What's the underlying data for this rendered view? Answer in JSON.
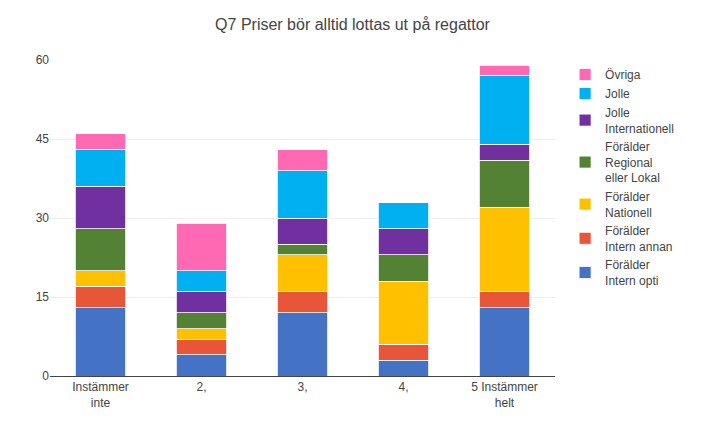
{
  "chart_data": {
    "type": "bar",
    "stacked": true,
    "title": "Q7 Priser bör alltid lottas ut på regattor",
    "categories": [
      "Instämmer\ninte",
      "2,",
      "3,",
      "4,",
      "5 Instämmer\nhelt"
    ],
    "series": [
      {
        "name": "Förälder\nIntern opti",
        "color": "#4472C4",
        "values": [
          13,
          4,
          12,
          3,
          13
        ]
      },
      {
        "name": "Förälder\nIntern annan",
        "color": "#E8563A",
        "values": [
          4,
          3,
          4,
          3,
          3
        ]
      },
      {
        "name": "Förälder\nNationell",
        "color": "#FFC000",
        "values": [
          3,
          2,
          7,
          12,
          16
        ]
      },
      {
        "name": "Förälder\nRegional\neller Lokal",
        "color": "#548235",
        "values": [
          8,
          3,
          2,
          5,
          9
        ]
      },
      {
        "name": "Jolle\nInternationell",
        "color": "#7030A0",
        "values": [
          8,
          4,
          5,
          5,
          3
        ]
      },
      {
        "name": "Jolle",
        "color": "#00B0F0",
        "values": [
          7,
          4,
          9,
          5,
          13
        ]
      },
      {
        "name": "Övriga",
        "color": "#FF69B4",
        "values": [
          3,
          9,
          4,
          0,
          2
        ]
      }
    ],
    "ylim": [
      0,
      60
    ],
    "yticks": [
      0,
      15,
      30,
      45,
      60
    ],
    "grid": true,
    "legend": "right"
  }
}
